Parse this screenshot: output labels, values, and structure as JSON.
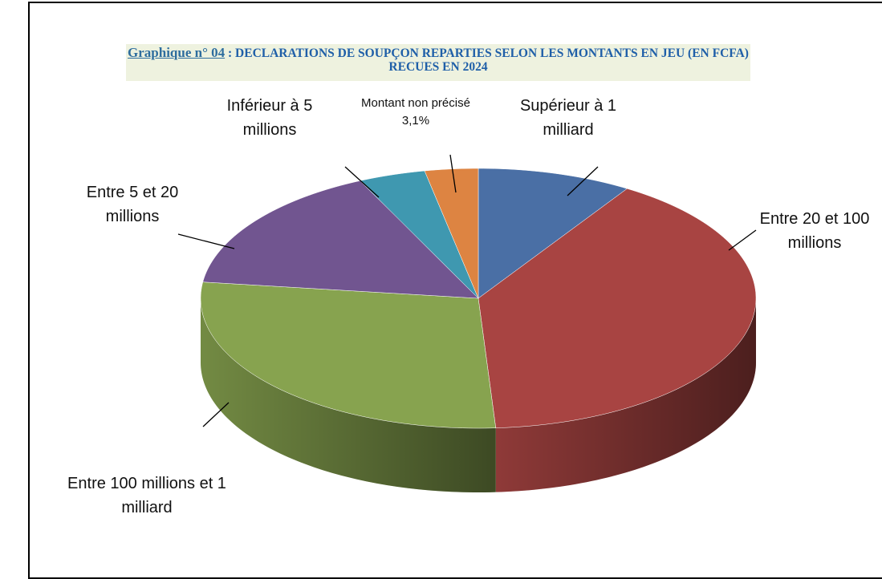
{
  "chart_data": {
    "type": "pie3d",
    "title_number": "Graphique n° 04",
    "title": ": DECLARATIONS DE SOUPÇON REPARTIES SELON LES MONTANTS EN JEU (EN FCFA) RECUES EN 2024",
    "categories": [
      "Supérieur à 1 milliard",
      "Entre 20 et 100 millions",
      "Entre 100 millions et 1 milliard",
      "Entre 5 et 20 millions",
      "Inférieur à 5 millions",
      "Montant non précisé"
    ],
    "values": [
      9,
      40,
      28,
      16,
      3.9,
      3.1
    ],
    "value_labels": [
      null,
      null,
      null,
      null,
      null,
      "3,1%"
    ],
    "colors": [
      "#4a6fa5",
      "#a84442",
      "#87a34f",
      "#715590",
      "#3f98b0",
      "#dd8442"
    ]
  }
}
